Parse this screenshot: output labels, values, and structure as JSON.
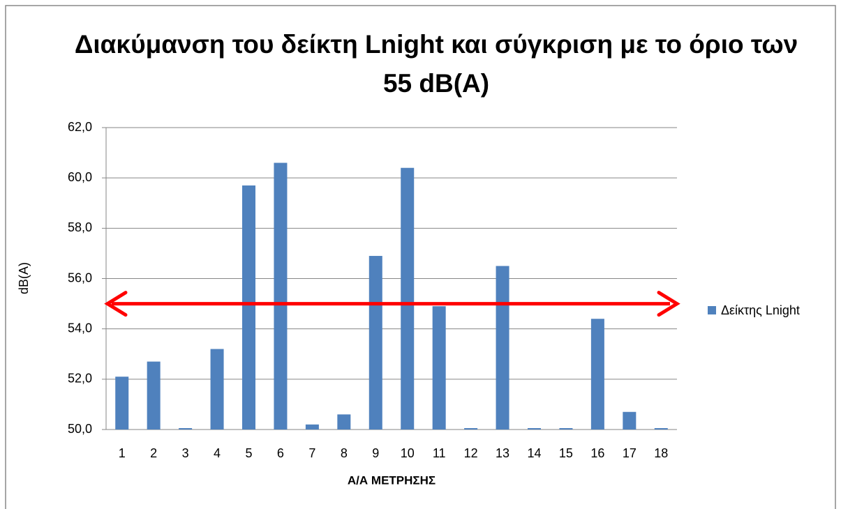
{
  "chart_data": {
    "type": "bar",
    "title": "Διακύμανση του δείκτη Lnight και σύγκριση με το όριο των 55 dB(A)",
    "x_label": "Α/Α ΜΕΤΡΗΣΗΣ",
    "y_label": "dB(A)",
    "categories": [
      "1",
      "2",
      "3",
      "4",
      "5",
      "6",
      "7",
      "8",
      "9",
      "10",
      "11",
      "12",
      "13",
      "14",
      "15",
      "16",
      "17",
      "18"
    ],
    "series": [
      {
        "name": "Δείκτης Lnight",
        "color": "#4f81bd",
        "values": [
          52.1,
          52.7,
          50.0,
          53.2,
          59.7,
          60.6,
          50.2,
          50.6,
          56.9,
          60.4,
          54.9,
          50.0,
          56.5,
          50.0,
          50.0,
          54.4,
          50.7,
          50.0
        ]
      }
    ],
    "reference_line": {
      "value": 55,
      "color": "#ff0000"
    },
    "ylim": [
      50,
      62
    ],
    "yticks": [
      {
        "value": 50,
        "label": "50,0"
      },
      {
        "value": 52,
        "label": "52,0"
      },
      {
        "value": 54,
        "label": "54,0"
      },
      {
        "value": 56,
        "label": "56,0"
      },
      {
        "value": 58,
        "label": "58,0"
      },
      {
        "value": 60,
        "label": "60,0"
      },
      {
        "value": 62,
        "label": "62,0"
      }
    ],
    "grid": true,
    "legend": "right"
  }
}
